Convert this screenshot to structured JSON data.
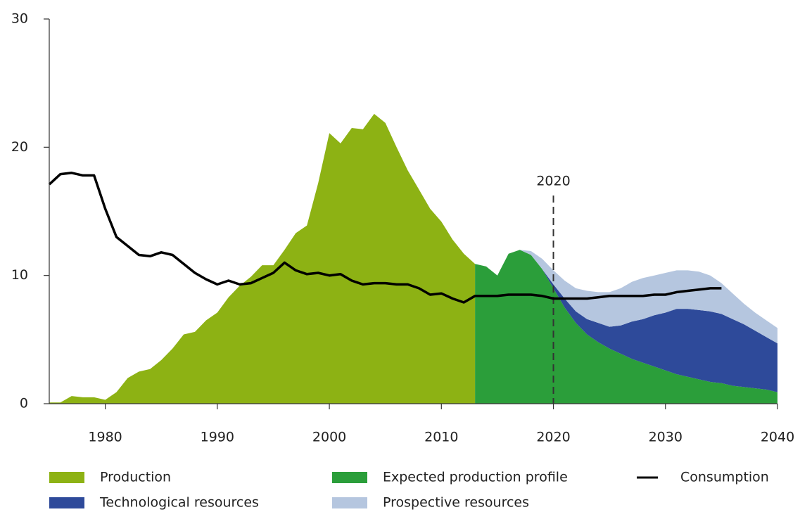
{
  "chart_data": {
    "type": "area",
    "x": [
      1975,
      1976,
      1977,
      1978,
      1979,
      1980,
      1981,
      1982,
      1983,
      1984,
      1985,
      1986,
      1987,
      1988,
      1989,
      1990,
      1991,
      1992,
      1993,
      1994,
      1995,
      1996,
      1997,
      1998,
      1999,
      2000,
      2001,
      2002,
      2003,
      2004,
      2005,
      2006,
      2007,
      2008,
      2009,
      2010,
      2011,
      2012,
      2013,
      2014,
      2015,
      2016,
      2017,
      2018,
      2019,
      2020,
      2021,
      2022,
      2023,
      2024,
      2025,
      2026,
      2027,
      2028,
      2029,
      2030,
      2031,
      2032,
      2033,
      2034,
      2035,
      2036,
      2037,
      2038,
      2039,
      2040
    ],
    "series": [
      {
        "name": "Production",
        "type": "area",
        "stack": false,
        "color": "#8db214",
        "values": [
          0.1,
          0.1,
          0.6,
          0.5,
          0.5,
          0.3,
          0.9,
          2.0,
          2.5,
          2.7,
          3.4,
          4.3,
          5.4,
          5.6,
          6.5,
          7.1,
          8.3,
          9.2,
          9.9,
          10.8,
          10.8,
          12.0,
          13.3,
          13.9,
          17.2,
          21.1,
          20.3,
          21.5,
          21.4,
          22.6,
          21.9,
          20.0,
          18.2,
          16.7,
          15.2,
          14.2,
          12.8,
          11.7,
          10.9,
          null,
          null,
          null,
          null,
          null,
          null,
          null,
          null,
          null,
          null,
          null,
          null,
          null,
          null,
          null,
          null,
          null,
          null,
          null,
          null,
          null,
          null,
          null,
          null,
          null,
          null,
          null
        ]
      },
      {
        "name": "Expected production profile",
        "type": "area",
        "stack": true,
        "color": "#2b9e3a",
        "values": [
          null,
          null,
          null,
          null,
          null,
          null,
          null,
          null,
          null,
          null,
          null,
          null,
          null,
          null,
          null,
          null,
          null,
          null,
          null,
          null,
          null,
          null,
          null,
          null,
          null,
          null,
          null,
          null,
          null,
          null,
          null,
          null,
          null,
          null,
          null,
          null,
          null,
          null,
          10.9,
          10.7,
          10.0,
          11.7,
          12.0,
          11.6,
          10.5,
          9.0,
          7.5,
          6.3,
          5.4,
          4.8,
          4.3,
          3.9,
          3.5,
          3.2,
          2.9,
          2.6,
          2.3,
          2.1,
          1.9,
          1.7,
          1.6,
          1.4,
          1.3,
          1.2,
          1.1,
          0.9
        ]
      },
      {
        "name": "Technological resources",
        "type": "area",
        "stack": true,
        "color": "#2e4a9a",
        "values": [
          null,
          null,
          null,
          null,
          null,
          null,
          null,
          null,
          null,
          null,
          null,
          null,
          null,
          null,
          null,
          null,
          null,
          null,
          null,
          null,
          null,
          null,
          null,
          null,
          null,
          null,
          null,
          null,
          null,
          null,
          null,
          null,
          null,
          null,
          null,
          null,
          null,
          null,
          null,
          null,
          null,
          null,
          null,
          null,
          0,
          0.3,
          0.7,
          0.9,
          1.2,
          1.5,
          1.7,
          2.2,
          2.9,
          3.4,
          4.0,
          4.5,
          5.1,
          5.3,
          5.4,
          5.5,
          5.4,
          5.2,
          4.9,
          4.5,
          4.1,
          3.8
        ]
      },
      {
        "name": "Prospective resources",
        "type": "area",
        "stack": true,
        "color": "#b5c6df",
        "values": [
          null,
          null,
          null,
          null,
          null,
          null,
          null,
          null,
          null,
          null,
          null,
          null,
          null,
          null,
          null,
          null,
          null,
          null,
          null,
          null,
          null,
          null,
          null,
          null,
          null,
          null,
          null,
          null,
          null,
          null,
          null,
          null,
          null,
          null,
          null,
          null,
          null,
          null,
          null,
          null,
          null,
          null,
          0,
          0.3,
          0.8,
          1.1,
          1.4,
          1.8,
          2.2,
          2.4,
          2.7,
          2.9,
          3.1,
          3.2,
          3.1,
          3.1,
          3.0,
          3.0,
          3.0,
          2.8,
          2.4,
          2.0,
          1.6,
          1.4,
          1.3,
          1.2
        ]
      },
      {
        "name": "Consumption",
        "type": "line",
        "color": "#000000",
        "values": [
          17.1,
          17.9,
          18.0,
          17.8,
          17.8,
          15.2,
          13.0,
          12.3,
          11.6,
          11.5,
          11.8,
          11.6,
          10.9,
          10.2,
          9.7,
          9.3,
          9.6,
          9.3,
          9.4,
          9.8,
          10.2,
          11.0,
          10.4,
          10.1,
          10.2,
          10.0,
          10.1,
          9.6,
          9.3,
          9.4,
          9.4,
          9.3,
          9.3,
          9.0,
          8.5,
          8.6,
          8.2,
          7.9,
          8.4,
          8.4,
          8.4,
          8.5,
          8.5,
          8.5,
          8.4,
          8.2,
          8.2,
          8.2,
          8.2,
          8.3,
          8.4,
          8.4,
          8.4,
          8.4,
          8.5,
          8.5,
          8.7,
          8.8,
          8.9,
          9.0,
          9.0,
          null,
          null,
          null,
          null,
          null
        ]
      }
    ],
    "annotation": {
      "text": "2020",
      "x": 2020
    },
    "xlim": [
      1975,
      2040
    ],
    "xticks": [
      1980,
      1990,
      2000,
      2010,
      2020,
      2030,
      2040
    ],
    "ylim": [
      0,
      30
    ],
    "yticks": [
      0,
      10,
      20,
      30
    ]
  }
}
